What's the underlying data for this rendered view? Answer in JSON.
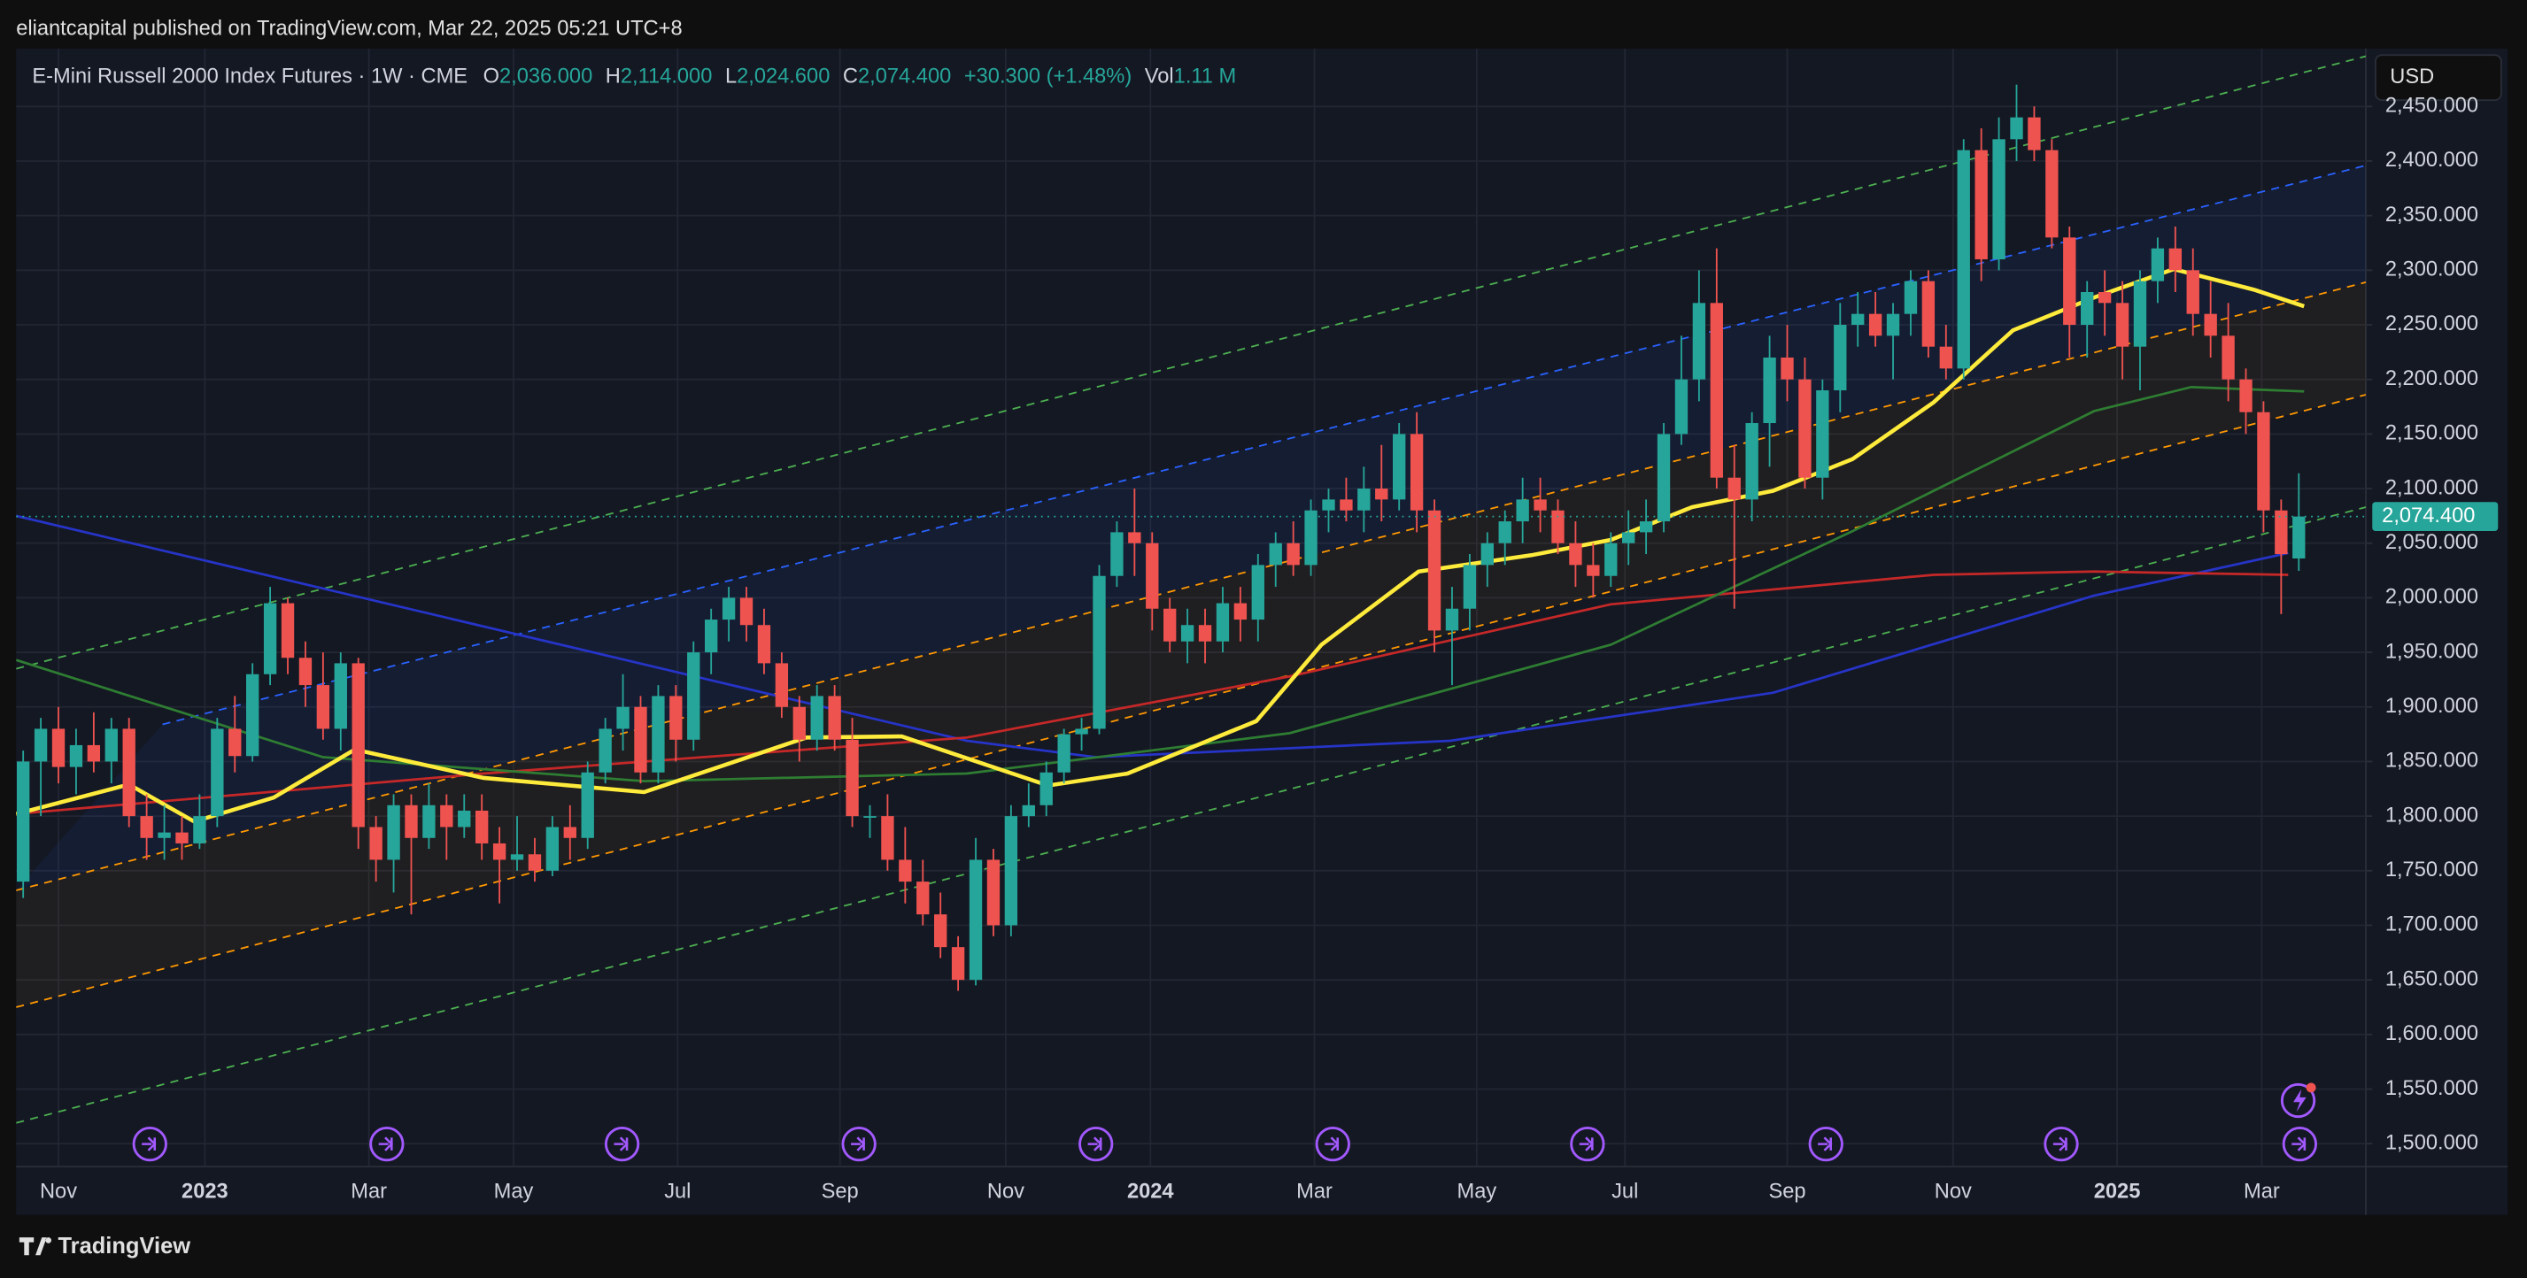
{
  "header": {
    "published": "eliantcapital published on TradingView.com, Mar 22, 2025 05:21 UTC+8",
    "currency": "USD",
    "brand": "TradingView"
  },
  "chart_data": {
    "type": "candlestick",
    "symbol": "E-Mini Russell 2000 Index Futures · 1W · CME",
    "legend": [
      {
        "key": "O",
        "value": "2,036.000"
      },
      {
        "key": "H",
        "value": "2,114.000"
      },
      {
        "key": "L",
        "value": "2,024.600"
      },
      {
        "key": "C",
        "value": "2,074.400"
      }
    ],
    "change": "+30.300 (+1.48%)",
    "volume": {
      "key": "Vol",
      "value": "1.11 M"
    },
    "up_color": "#26a69a",
    "down_color": "#ef5350",
    "open": [
      1740,
      1850,
      1880,
      1845,
      1865,
      1850,
      1880,
      1800,
      1780,
      1785,
      1775,
      1800,
      1880,
      1855,
      1930,
      1995,
      1945,
      1920,
      1880,
      1940,
      1790,
      1760,
      1810,
      1780,
      1810,
      1790,
      1805,
      1775,
      1760,
      1765,
      1750,
      1790,
      1780,
      1840,
      1880,
      1900,
      1840,
      1910,
      1870,
      1950,
      1980,
      2000,
      1975,
      1940,
      1900,
      1870,
      1910,
      1870,
      1800,
      1800,
      1760,
      1740,
      1710,
      1680,
      1650,
      1760,
      1700,
      1800,
      1810,
      1840,
      1875,
      1880,
      2020,
      2060,
      2050,
      1990,
      1960,
      1975,
      1960,
      1995,
      1980,
      2030,
      2050,
      2030,
      2080,
      2090,
      2080,
      2100,
      2090,
      2150,
      2080,
      1970,
      1990,
      2030,
      2050,
      2070,
      2090,
      2080,
      2050,
      2030,
      2020,
      2050,
      2060,
      2070,
      2150,
      2200,
      2270,
      2110,
      2090,
      2160,
      2220,
      2200,
      2110,
      2190,
      2250,
      2260,
      2240,
      2260,
      2290,
      2230,
      2210,
      2410,
      2310,
      2420,
      2440,
      2410,
      2330,
      2250,
      2280,
      2270,
      2230,
      2290,
      2320,
      2300,
      2260,
      2240,
      2200,
      2170,
      2080,
      2036
    ],
    "high": [
      1860,
      1890,
      1900,
      1880,
      1895,
      1890,
      1890,
      1820,
      1810,
      1800,
      1820,
      1890,
      1910,
      1940,
      2010,
      2000,
      1960,
      1950,
      1950,
      1945,
      1800,
      1820,
      1820,
      1830,
      1820,
      1820,
      1820,
      1790,
      1800,
      1780,
      1800,
      1810,
      1850,
      1890,
      1930,
      1910,
      1920,
      1920,
      1960,
      1990,
      2010,
      2010,
      1990,
      1950,
      1910,
      1920,
      1920,
      1890,
      1810,
      1820,
      1790,
      1760,
      1730,
      1690,
      1780,
      1770,
      1810,
      1830,
      1850,
      1880,
      1890,
      2030,
      2070,
      2100,
      2060,
      2000,
      1990,
      1990,
      2010,
      2010,
      2040,
      2060,
      2070,
      2090,
      2100,
      2110,
      2120,
      2140,
      2160,
      2170,
      2090,
      2010,
      2040,
      2060,
      2080,
      2110,
      2110,
      2090,
      2070,
      2050,
      2060,
      2080,
      2090,
      2160,
      2240,
      2300,
      2320,
      2140,
      2170,
      2240,
      2250,
      2220,
      2200,
      2270,
      2280,
      2280,
      2270,
      2300,
      2300,
      2250,
      2420,
      2430,
      2440,
      2470,
      2450,
      2420,
      2340,
      2290,
      2300,
      2290,
      2300,
      2330,
      2340,
      2320,
      2290,
      2270,
      2210,
      2180,
      2090,
      2114
    ],
    "low": [
      1725,
      1800,
      1830,
      1820,
      1840,
      1830,
      1790,
      1760,
      1760,
      1760,
      1770,
      1790,
      1840,
      1850,
      1920,
      1930,
      1900,
      1870,
      1860,
      1770,
      1740,
      1730,
      1710,
      1770,
      1760,
      1780,
      1760,
      1720,
      1750,
      1740,
      1745,
      1760,
      1770,
      1830,
      1860,
      1830,
      1830,
      1850,
      1860,
      1930,
      1960,
      1960,
      1930,
      1890,
      1850,
      1860,
      1860,
      1790,
      1780,
      1750,
      1720,
      1700,
      1670,
      1640,
      1645,
      1690,
      1690,
      1790,
      1800,
      1830,
      1860,
      1875,
      2010,
      2020,
      1970,
      1950,
      1940,
      1940,
      1950,
      1960,
      1960,
      2010,
      2020,
      2020,
      2060,
      2070,
      2060,
      2070,
      2080,
      2060,
      1950,
      1920,
      1970,
      2010,
      2030,
      2050,
      2060,
      2040,
      2010,
      2000,
      2010,
      2030,
      2040,
      2060,
      2140,
      2180,
      2100,
      1990,
      2070,
      2120,
      2180,
      2100,
      2090,
      2170,
      2230,
      2230,
      2200,
      2240,
      2220,
      2200,
      2200,
      2290,
      2300,
      2400,
      2400,
      2320,
      2220,
      2220,
      2240,
      2200,
      2190,
      2270,
      2280,
      2240,
      2220,
      2180,
      2150,
      2060,
      1985,
      2024.6
    ],
    "close": [
      1850,
      1880,
      1845,
      1865,
      1850,
      1880,
      1800,
      1780,
      1785,
      1775,
      1800,
      1880,
      1855,
      1930,
      1995,
      1945,
      1920,
      1880,
      1940,
      1790,
      1760,
      1810,
      1780,
      1810,
      1790,
      1805,
      1775,
      1760,
      1765,
      1750,
      1790,
      1780,
      1840,
      1880,
      1900,
      1840,
      1910,
      1870,
      1950,
      1980,
      2000,
      1975,
      1940,
      1900,
      1870,
      1910,
      1870,
      1800,
      1800,
      1760,
      1740,
      1710,
      1680,
      1650,
      1760,
      1700,
      1800,
      1810,
      1840,
      1875,
      1880,
      2020,
      2060,
      2050,
      1990,
      1960,
      1975,
      1960,
      1995,
      1980,
      2030,
      2050,
      2030,
      2080,
      2090,
      2080,
      2100,
      2090,
      2150,
      2080,
      1970,
      1990,
      2030,
      2050,
      2070,
      2090,
      2080,
      2050,
      2030,
      2020,
      2050,
      2060,
      2070,
      2150,
      2200,
      2270,
      2110,
      2090,
      2160,
      2220,
      2200,
      2110,
      2190,
      2250,
      2260,
      2240,
      2260,
      2290,
      2230,
      2210,
      2410,
      2310,
      2420,
      2440,
      2410,
      2330,
      2250,
      2280,
      2270,
      2230,
      2290,
      2320,
      2300,
      2260,
      2240,
      2200,
      2170,
      2080,
      2040,
      2074.4
    ],
    "overlays": [
      {
        "color": "#4caf50",
        "dashed": true,
        "width": 1,
        "x": [
          -0.4,
          132.8
        ],
        "values": [
          1935,
          2496
        ]
      },
      {
        "color": "#2962ff",
        "dashed": true,
        "width": 1,
        "x": [
          7.9,
          132.8
        ],
        "values": [
          1884,
          2396
        ]
      },
      {
        "color": "#ff9800",
        "dashed": true,
        "width": 1,
        "x": [
          -0.4,
          132.8
        ],
        "values": [
          1732,
          2289
        ]
      },
      {
        "color": "#ff9800",
        "dashed": true,
        "width": 1,
        "x": [
          -0.4,
          132.8
        ],
        "values": [
          1625,
          2186
        ]
      },
      {
        "color": "#4caf50",
        "dashed": true,
        "width": 1,
        "x": [
          -0.4,
          132.8
        ],
        "values": [
          1519,
          2083
        ]
      },
      {
        "color": "#2634c8",
        "dashed": false,
        "width": 1.5,
        "x": [
          -0.4,
          53.5,
          60.8,
          80.9,
          99.2,
          117.4,
          128.4
        ],
        "values": [
          2075,
          1869,
          1854,
          1869,
          1913,
          2002,
          2041
        ]
      },
      {
        "color": "#c62828",
        "dashed": false,
        "width": 1.5,
        "x": [
          -0.4,
          26.1,
          53.5,
          71.8,
          90.0,
          108.3,
          117.4,
          128.4
        ],
        "values": [
          1802,
          1839,
          1872,
          1928,
          1994,
          2021,
          2024,
          2021
        ]
      },
      {
        "color": "#2e7d32",
        "dashed": false,
        "width": 1.5,
        "x": [
          -0.4,
          17.0,
          35.2,
          53.5,
          71.8,
          90.0,
          103.7,
          117.4,
          122.9,
          129.3
        ],
        "values": [
          1943,
          1854,
          1832,
          1839,
          1876,
          1957,
          2061,
          2171,
          2193,
          2189
        ]
      },
      {
        "color": "#ffeb3b",
        "dashed": false,
        "width": 2.5,
        "x": [
          -0.4,
          6.0,
          9.7,
          14.2,
          18.8,
          26.1,
          35.2,
          44.4,
          49.8,
          58.1,
          62.6,
          69.9,
          73.6,
          79.1,
          85.5,
          90.0,
          94.6,
          99.2,
          103.7,
          108.3,
          112.8,
          117.4,
          121.9,
          126.5,
          129.3
        ],
        "values": [
          1802,
          1829,
          1795,
          1817,
          1861,
          1835,
          1822,
          1872,
          1873,
          1828,
          1839,
          1887,
          1957,
          2024,
          2039,
          2053,
          2083,
          2098,
          2127,
          2179,
          2245,
          2275,
          2301,
          2282,
          2267
        ]
      }
    ],
    "last": {
      "value": 2074.4,
      "label": "2,074.400"
    },
    "xlim": [
      -0.4,
      132.8
    ],
    "xticks": [
      {
        "value": 2.0,
        "label": "Nov"
      },
      {
        "value": 10.3,
        "label": "2023"
      },
      {
        "value": 19.6,
        "label": "Mar"
      },
      {
        "value": 27.8,
        "label": "May"
      },
      {
        "value": 37.1,
        "label": "Jul"
      },
      {
        "value": 46.3,
        "label": "Sep"
      },
      {
        "value": 55.7,
        "label": "Nov"
      },
      {
        "value": 63.9,
        "label": "2024"
      },
      {
        "value": 73.2,
        "label": "Mar"
      },
      {
        "value": 82.4,
        "label": "May"
      },
      {
        "value": 90.8,
        "label": "Jul"
      },
      {
        "value": 100.0,
        "label": "Sep"
      },
      {
        "value": 109.4,
        "label": "Nov"
      },
      {
        "value": 118.7,
        "label": "2025"
      },
      {
        "value": 126.9,
        "label": "Mar"
      }
    ],
    "ylim": [
      1479,
      2503
    ],
    "yticks": [
      {
        "value": 1500,
        "label": "1,500.000"
      },
      {
        "value": 1550,
        "label": "1,550.000"
      },
      {
        "value": 1600,
        "label": "1,600.000"
      },
      {
        "value": 1650,
        "label": "1,650.000"
      },
      {
        "value": 1700,
        "label": "1,700.000"
      },
      {
        "value": 1750,
        "label": "1,750.000"
      },
      {
        "value": 1800,
        "label": "1,800.000"
      },
      {
        "value": 1850,
        "label": "1,850.000"
      },
      {
        "value": 1900,
        "label": "1,900.000"
      },
      {
        "value": 1950,
        "label": "1,950.000"
      },
      {
        "value": 2000,
        "label": "2,000.000"
      },
      {
        "value": 2050,
        "label": "2,050.000"
      },
      {
        "value": 2100,
        "label": "2,100.000"
      },
      {
        "value": 2150,
        "label": "2,150.000"
      },
      {
        "value": 2200,
        "label": "2,200.000"
      },
      {
        "value": 2250,
        "label": "2,250.000"
      },
      {
        "value": 2300,
        "label": "2,300.000"
      },
      {
        "value": 2350,
        "label": "2,350.000"
      },
      {
        "value": 2400,
        "label": "2,400.000"
      },
      {
        "value": 2450,
        "label": "2,450.000"
      }
    ],
    "grid": true
  }
}
